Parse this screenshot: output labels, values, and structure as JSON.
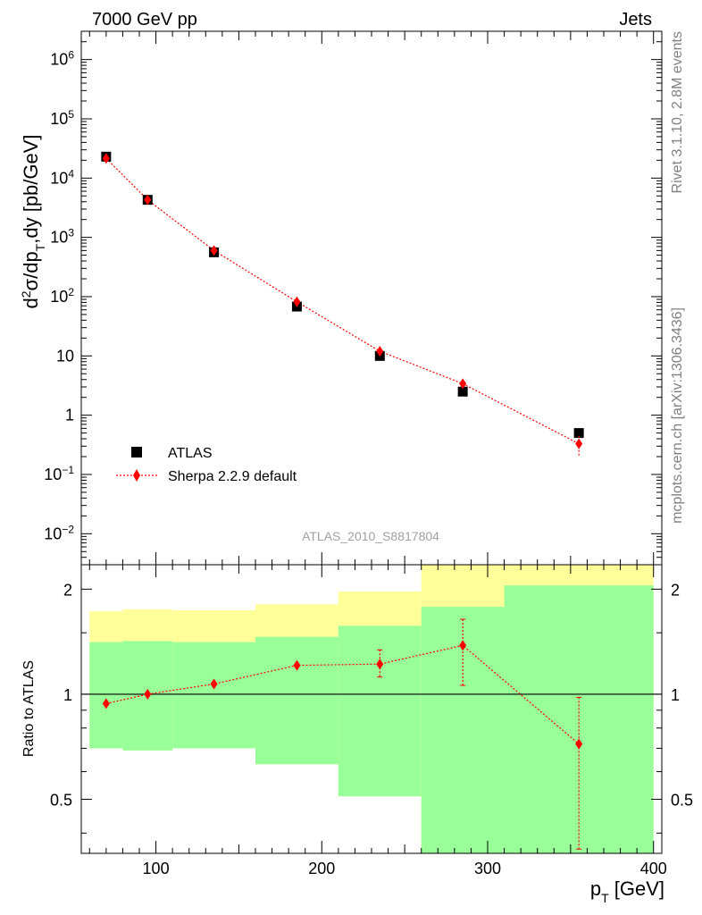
{
  "header": {
    "left_title": "7000 GeV pp",
    "right_title": "Jets"
  },
  "side_labels": {
    "rivet": "Rivet 3.1.10,  2.8M events",
    "mcplots": "mcplots.cern.ch [arXiv:1306.3436]"
  },
  "analysis_label": "ATLAS_2010_S8817804",
  "colors": {
    "data": "#000000",
    "mc": "#ff0000",
    "band_outer": "#ffff99",
    "band_inner": "#99ff99"
  },
  "chart_data": [
    {
      "type": "scatter",
      "name": "main",
      "ylabel": "d²σ/dp_T,dy [pb/GeV]",
      "yscale": "log",
      "ylim": [
        0.003,
        3000000
      ],
      "xlim": [
        55,
        405
      ],
      "y_ticks": [
        "10^-2",
        "10^-1",
        "1",
        "10",
        "10^2",
        "10^3",
        "10^4",
        "10^5",
        "10^6"
      ],
      "legend": {
        "placement": "lower-left",
        "entries": [
          "ATLAS",
          "Sherpa 2.2.9 default"
        ]
      },
      "series": [
        {
          "name": "ATLAS",
          "marker": "square",
          "x": [
            70,
            95,
            135,
            185,
            235,
            285,
            355
          ],
          "y": [
            23000,
            4300,
            560,
            68,
            10,
            2.5,
            0.5
          ]
        },
        {
          "name": "Sherpa 2.2.9 default",
          "marker": "diamond",
          "line": "dotted",
          "x": [
            70,
            95,
            135,
            185,
            235,
            285,
            355
          ],
          "y": [
            21500,
            4300,
            600,
            82,
            12,
            3.4,
            0.33
          ],
          "y_err_low": [
            0,
            0,
            0,
            0,
            0,
            0,
            0.12
          ],
          "y_err_high": [
            0,
            0,
            0,
            0,
            0,
            0,
            0.12
          ]
        }
      ]
    },
    {
      "type": "scatter",
      "name": "ratio",
      "ylabel": "Ratio to ATLAS",
      "xlabel": "p_T [GeV]",
      "yscale": "log",
      "ylim": [
        0.35,
        2.35
      ],
      "xlim": [
        55,
        405
      ],
      "x_ticks": [
        100,
        200,
        300,
        400
      ],
      "y_ticks": [
        0.5,
        1,
        2
      ],
      "bands": {
        "edges": [
          60,
          80,
          110,
          160,
          210,
          260,
          310,
          400
        ],
        "outer_low": [
          0.7,
          0.69,
          0.7,
          0.63,
          0.51,
          0.35,
          0.35
        ],
        "outer_high": [
          1.73,
          1.75,
          1.74,
          1.81,
          1.97,
          2.35,
          2.35
        ],
        "inner_low": [
          0.7,
          0.69,
          0.7,
          0.63,
          0.51,
          0.35,
          0.35
        ],
        "inner_high": [
          1.41,
          1.42,
          1.41,
          1.46,
          1.57,
          1.78,
          2.05
        ]
      },
      "series": [
        {
          "name": "Sherpa 2.2.9 default",
          "x": [
            70,
            95,
            135,
            185,
            235,
            285,
            355
          ],
          "y": [
            0.94,
            1.0,
            1.07,
            1.21,
            1.22,
            1.38,
            0.72
          ],
          "y_err_low": [
            0,
            0,
            0,
            0,
            0.1,
            0.32,
            0.36
          ],
          "y_err_high": [
            0,
            0,
            0,
            0,
            0.12,
            0.26,
            0.26
          ]
        }
      ]
    }
  ]
}
